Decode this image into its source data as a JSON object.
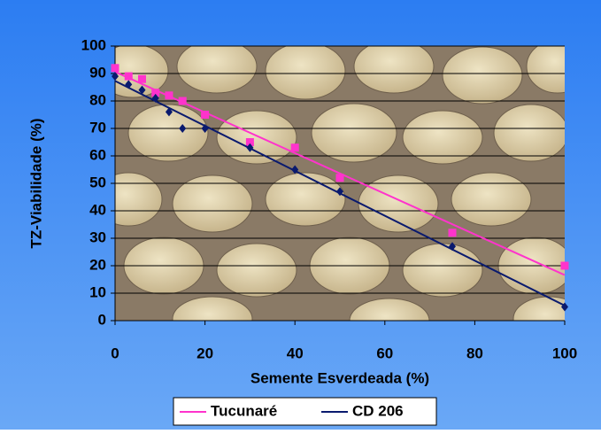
{
  "chart_data": {
    "type": "scatter",
    "xlabel": "Semente Esverdeada (%)",
    "ylabel": "TZ-Viabilidade (%)",
    "xlim": [
      0,
      100
    ],
    "xticks": [
      0,
      20,
      40,
      60,
      80,
      100
    ],
    "ylim": [
      0,
      100
    ],
    "yticks": [
      0,
      10,
      20,
      30,
      40,
      50,
      60,
      70,
      80,
      90,
      100
    ],
    "grid": true,
    "trendline": "linear",
    "legend": "bottom",
    "series": [
      {
        "name": "Tucunaré",
        "color": "#ff33cc",
        "marker": "square",
        "x": [
          0,
          3,
          6,
          9,
          12,
          15,
          20,
          30,
          40,
          50,
          75,
          100
        ],
        "values": [
          92,
          89,
          88,
          83,
          82,
          80,
          75,
          65,
          63,
          52,
          32,
          20
        ]
      },
      {
        "name": "CD 206",
        "color": "#0a1a6e",
        "marker": "diamond",
        "x": [
          0,
          3,
          6,
          9,
          12,
          15,
          20,
          30,
          40,
          50,
          75,
          100
        ],
        "values": [
          89,
          86,
          84,
          81,
          76,
          70,
          70,
          63,
          55,
          47,
          27,
          5
        ]
      }
    ]
  }
}
